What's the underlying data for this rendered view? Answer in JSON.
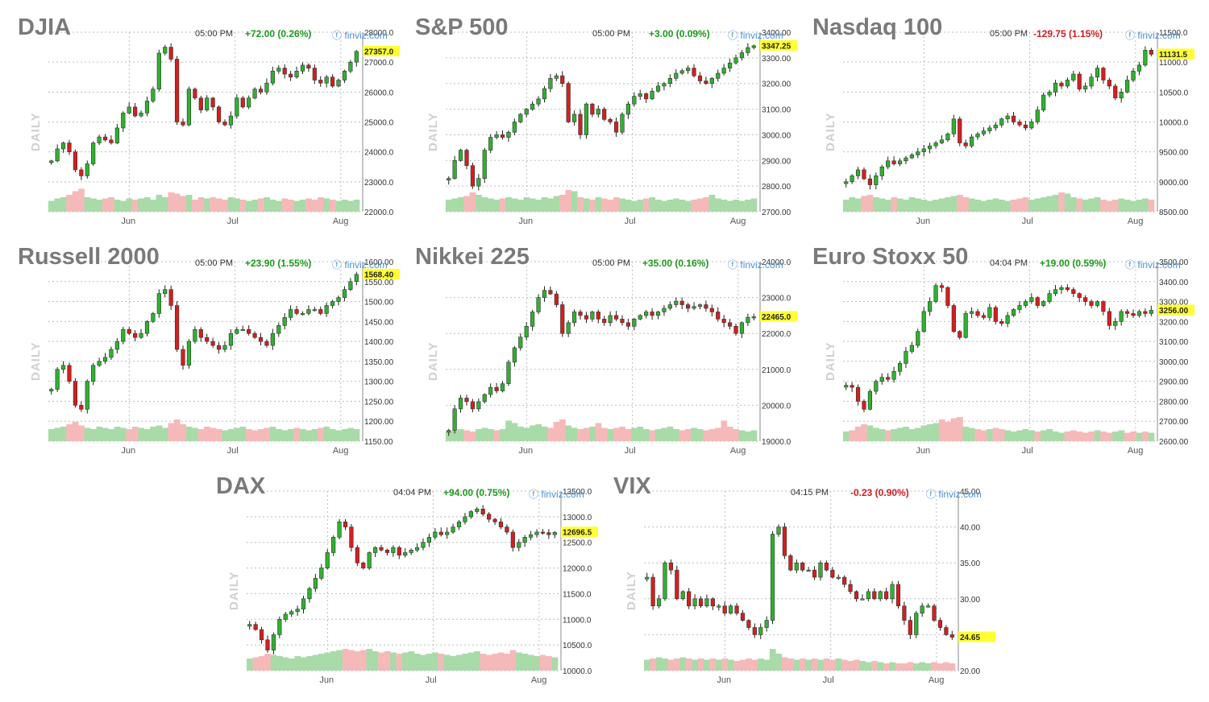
{
  "colors": {
    "up": "#2fb12f",
    "down": "#d21f1f",
    "vol_up": "#a8dba8",
    "vol_down": "#f6b9b9",
    "pos": "#1d9a1d",
    "neg": "#d21f1f",
    "current_bg": "#ffff33",
    "grid": "#bdbdbd",
    "title": "#7a7a7a",
    "daily": "#d0d0d0",
    "watermark": "#4a8fd8"
  },
  "side_label": "DAILY",
  "watermark": "finviz.com",
  "month_labels": [
    "Jun",
    "Jul",
    "Aug"
  ],
  "chart_data": [
    {
      "id": "djia",
      "type": "candlestick",
      "title": "DJIA",
      "time": "05:00 PM",
      "change": "+72.00 (0.26%)",
      "direction": "up",
      "ylim": [
        22000,
        28000
      ],
      "ticks": [
        "28000.0",
        "27000.0",
        "26000.0",
        "25000.0",
        "24000.0",
        "23000.0",
        "22000.0"
      ],
      "current": "27357.0",
      "closes": [
        23700,
        24100,
        24300,
        24000,
        23400,
        23200,
        23600,
        24300,
        24500,
        24400,
        24300,
        24800,
        25300,
        25500,
        25200,
        25300,
        25700,
        26100,
        27300,
        27500,
        27100,
        25000,
        24900,
        26100,
        25800,
        25400,
        25800,
        25500,
        25000,
        24900,
        25200,
        25800,
        25500,
        25800,
        26100,
        26000,
        26300,
        26700,
        26800,
        26600,
        26500,
        26700,
        26900,
        26800,
        26400,
        26300,
        26500,
        26200,
        26400,
        26700,
        27000,
        27357
      ],
      "volumes": [
        0.45,
        0.55,
        0.6,
        0.7,
        0.85,
        0.95,
        0.6,
        0.55,
        0.5,
        0.55,
        0.6,
        0.5,
        0.45,
        0.55,
        0.5,
        0.55,
        0.6,
        0.5,
        0.7,
        0.6,
        0.8,
        0.75,
        0.65,
        0.7,
        0.5,
        0.6,
        0.55,
        0.6,
        0.55,
        0.5,
        0.6,
        0.55,
        0.5,
        0.45,
        0.5,
        0.55,
        0.6,
        0.5,
        0.45,
        0.55,
        0.5,
        0.45,
        0.5,
        0.55,
        0.5,
        0.6,
        0.55,
        0.5,
        0.45,
        0.5,
        0.45,
        0.5
      ]
    },
    {
      "id": "sp500",
      "type": "candlestick",
      "title": "S&P 500",
      "time": "05:00 PM",
      "change": "+3.00 (0.09%)",
      "direction": "up",
      "ylim": [
        2700,
        3400
      ],
      "ticks": [
        "3400.00",
        "3300.00",
        "3200.00",
        "3100.00",
        "3000.00",
        "2900.00",
        "2800.00",
        "2700.00"
      ],
      "current": "3347.25",
      "closes": [
        2830,
        2900,
        2940,
        2880,
        2800,
        2830,
        2940,
        2990,
        3000,
        2990,
        3010,
        3050,
        3080,
        3100,
        3120,
        3140,
        3180,
        3220,
        3230,
        3200,
        3050,
        3080,
        3000,
        3120,
        3080,
        3100,
        3060,
        3050,
        3010,
        3080,
        3120,
        3150,
        3160,
        3140,
        3170,
        3190,
        3200,
        3220,
        3240,
        3250,
        3260,
        3230,
        3210,
        3200,
        3220,
        3240,
        3260,
        3280,
        3300,
        3320,
        3340,
        3347
      ],
      "volumes": [
        0.5,
        0.55,
        0.6,
        0.65,
        0.8,
        0.7,
        0.6,
        0.55,
        0.5,
        0.55,
        0.6,
        0.55,
        0.5,
        0.6,
        0.55,
        0.5,
        0.6,
        0.55,
        0.65,
        0.7,
        0.9,
        0.85,
        0.6,
        0.55,
        0.5,
        0.6,
        0.55,
        0.5,
        0.6,
        0.55,
        0.5,
        0.45,
        0.5,
        0.55,
        0.6,
        0.5,
        0.45,
        0.5,
        0.55,
        0.5,
        0.45,
        0.5,
        0.55,
        0.6,
        0.7,
        0.55,
        0.5,
        0.45,
        0.5,
        0.45,
        0.5,
        0.55
      ]
    },
    {
      "id": "ndx",
      "type": "candlestick",
      "title": "Nasdaq 100",
      "time": "05:00 PM",
      "change": "-129.75 (1.15%)",
      "direction": "down",
      "ylim": [
        8500,
        11500
      ],
      "ticks": [
        "11500.0",
        "11000.0",
        "10500.0",
        "10000.0",
        "9500.00",
        "9000.00",
        "8500.00"
      ],
      "current": "11131.5",
      "closes": [
        9000,
        9100,
        9200,
        9050,
        8950,
        9100,
        9250,
        9350,
        9300,
        9350,
        9400,
        9450,
        9500,
        9550,
        9600,
        9650,
        9700,
        9800,
        10050,
        9650,
        9600,
        9750,
        9800,
        9850,
        9900,
        9950,
        10050,
        10100,
        10000,
        9950,
        9900,
        10000,
        10200,
        10450,
        10500,
        10650,
        10600,
        10700,
        10800,
        10550,
        10600,
        10750,
        10900,
        10700,
        10600,
        10400,
        10500,
        10700,
        10850,
        10950,
        11200,
        11131
      ],
      "volumes": [
        0.5,
        0.6,
        0.55,
        0.65,
        0.7,
        0.6,
        0.55,
        0.5,
        0.6,
        0.55,
        0.5,
        0.6,
        0.55,
        0.5,
        0.45,
        0.5,
        0.55,
        0.6,
        0.65,
        0.7,
        0.6,
        0.55,
        0.5,
        0.45,
        0.5,
        0.55,
        0.5,
        0.45,
        0.5,
        0.55,
        0.6,
        0.5,
        0.55,
        0.6,
        0.65,
        0.7,
        0.8,
        0.75,
        0.6,
        0.55,
        0.5,
        0.55,
        0.6,
        0.5,
        0.45,
        0.5,
        0.55,
        0.5,
        0.45,
        0.5,
        0.55,
        0.5
      ]
    },
    {
      "id": "rut",
      "type": "candlestick",
      "title": "Russell 2000",
      "time": "05:00 PM",
      "change": "+23.90 (1.55%)",
      "direction": "up",
      "ylim": [
        1150,
        1600
      ],
      "ticks": [
        "1600.00",
        "1550.00",
        "1500.00",
        "1450.00",
        "1400.00",
        "1350.00",
        "1300.00",
        "1250.00",
        "1200.00",
        "1150.00"
      ],
      "current": "1568.40",
      "closes": [
        1280,
        1330,
        1340,
        1300,
        1240,
        1230,
        1300,
        1340,
        1350,
        1360,
        1380,
        1400,
        1430,
        1420,
        1410,
        1420,
        1450,
        1470,
        1520,
        1530,
        1490,
        1380,
        1340,
        1400,
        1430,
        1410,
        1400,
        1390,
        1380,
        1390,
        1420,
        1430,
        1430,
        1420,
        1410,
        1400,
        1390,
        1420,
        1440,
        1460,
        1480,
        1470,
        1470,
        1480,
        1480,
        1470,
        1490,
        1500,
        1510,
        1530,
        1550,
        1568
      ],
      "volumes": [
        0.5,
        0.55,
        0.6,
        0.7,
        0.8,
        0.65,
        0.55,
        0.5,
        0.6,
        0.55,
        0.5,
        0.6,
        0.55,
        0.5,
        0.6,
        0.55,
        0.5,
        0.6,
        0.65,
        0.55,
        0.75,
        0.9,
        0.7,
        0.6,
        0.55,
        0.5,
        0.6,
        0.55,
        0.5,
        0.45,
        0.5,
        0.55,
        0.6,
        0.5,
        0.45,
        0.5,
        0.55,
        0.6,
        0.5,
        0.45,
        0.5,
        0.55,
        0.5,
        0.45,
        0.5,
        0.55,
        0.6,
        0.5,
        0.45,
        0.5,
        0.55,
        0.5
      ]
    },
    {
      "id": "nikkei",
      "type": "candlestick",
      "title": "Nikkei 225",
      "time": "05:00 PM",
      "change": "+35.00 (0.16%)",
      "direction": "up",
      "ylim": [
        19000,
        24000
      ],
      "ticks": [
        "24000.0",
        "23000.0",
        "22000.0",
        "21000.0",
        "20000.0",
        "19000.0"
      ],
      "current": "22465.0",
      "closes": [
        19300,
        19900,
        20200,
        20100,
        19900,
        20100,
        20300,
        20500,
        20400,
        20600,
        21200,
        21600,
        21900,
        22200,
        22600,
        23000,
        23200,
        23100,
        22800,
        22000,
        22300,
        22600,
        22500,
        22400,
        22600,
        22400,
        22300,
        22500,
        22400,
        22300,
        22200,
        22400,
        22500,
        22600,
        22500,
        22600,
        22700,
        22800,
        22900,
        22800,
        22700,
        22750,
        22800,
        22700,
        22600,
        22400,
        22300,
        22200,
        22000,
        22300,
        22450,
        22465
      ],
      "volumes": [
        0.4,
        0.45,
        0.5,
        0.45,
        0.4,
        0.5,
        0.55,
        0.5,
        0.45,
        0.5,
        0.85,
        0.75,
        0.6,
        0.55,
        0.65,
        0.7,
        0.6,
        0.55,
        0.8,
        0.9,
        0.65,
        0.55,
        0.5,
        0.55,
        0.6,
        0.75,
        0.55,
        0.5,
        0.55,
        0.6,
        0.5,
        0.55,
        0.6,
        0.5,
        0.45,
        0.5,
        0.55,
        0.6,
        0.5,
        0.45,
        0.5,
        0.55,
        0.5,
        0.45,
        0.5,
        0.55,
        0.85,
        0.6,
        0.5,
        0.45,
        0.4,
        0.45
      ]
    },
    {
      "id": "sx5e",
      "type": "candlestick",
      "title": "Euro Stoxx 50",
      "time": "04:04 PM",
      "change": "+19.00 (0.59%)",
      "direction": "up",
      "ylim": [
        2600,
        3500
      ],
      "ticks": [
        "3500.00",
        "3400.00",
        "3300.00",
        "3200.00",
        "3100.00",
        "3000.00",
        "2900.00",
        "2800.00",
        "2700.00",
        "2600.00"
      ],
      "current": "3256.00",
      "closes": [
        2880,
        2870,
        2800,
        2760,
        2850,
        2900,
        2920,
        2910,
        2950,
        2990,
        3050,
        3080,
        3150,
        3250,
        3300,
        3380,
        3370,
        3280,
        3150,
        3120,
        3240,
        3250,
        3230,
        3220,
        3270,
        3200,
        3190,
        3230,
        3260,
        3280,
        3300,
        3320,
        3280,
        3300,
        3340,
        3360,
        3370,
        3360,
        3340,
        3320,
        3300,
        3280,
        3300,
        3250,
        3180,
        3200,
        3250,
        3240,
        3230,
        3250,
        3240,
        3256
      ],
      "volumes": [
        0.4,
        0.45,
        0.6,
        0.7,
        0.65,
        0.55,
        0.5,
        0.45,
        0.5,
        0.55,
        0.6,
        0.5,
        0.55,
        0.65,
        0.7,
        0.75,
        0.9,
        0.8,
        0.95,
        1.0,
        0.6,
        0.55,
        0.5,
        0.45,
        0.5,
        0.55,
        0.5,
        0.45,
        0.4,
        0.45,
        0.5,
        0.45,
        0.4,
        0.45,
        0.5,
        0.4,
        0.35,
        0.4,
        0.45,
        0.4,
        0.35,
        0.4,
        0.45,
        0.4,
        0.35,
        0.4,
        0.45,
        0.35,
        0.4,
        0.35,
        0.4,
        0.35
      ]
    },
    {
      "id": "dax",
      "type": "candlestick",
      "title": "DAX",
      "time": "04:04 PM",
      "change": "+94.00 (0.75%)",
      "direction": "up",
      "ylim": [
        10000,
        13500
      ],
      "ticks": [
        "13500.0",
        "13000.0",
        "12500.0",
        "12000.0",
        "11500.0",
        "11000.0",
        "10500.0",
        "10000.0"
      ],
      "current": "12696.5",
      "closes": [
        10900,
        10800,
        10600,
        10400,
        10700,
        11000,
        11100,
        11150,
        11200,
        11400,
        11600,
        11800,
        12000,
        12300,
        12600,
        12900,
        12800,
        12400,
        12100,
        12000,
        12300,
        12400,
        12350,
        12300,
        12400,
        12250,
        12300,
        12350,
        12400,
        12500,
        12600,
        12700,
        12650,
        12700,
        12800,
        12900,
        13000,
        13100,
        13150,
        13050,
        12950,
        12900,
        12800,
        12700,
        12400,
        12500,
        12600,
        12650,
        12700,
        12690,
        12650,
        12696
      ],
      "volumes": [
        0.5,
        0.55,
        0.6,
        0.7,
        0.65,
        0.6,
        0.55,
        0.5,
        0.6,
        0.55,
        0.6,
        0.65,
        0.7,
        0.75,
        0.8,
        0.85,
        0.9,
        0.85,
        0.8,
        0.85,
        0.9,
        0.8,
        0.75,
        0.8,
        0.75,
        0.7,
        0.75,
        0.8,
        0.7,
        0.65,
        0.7,
        0.75,
        0.7,
        0.65,
        0.6,
        0.65,
        0.7,
        0.75,
        0.8,
        0.7,
        0.65,
        0.7,
        0.75,
        0.7,
        0.85,
        0.75,
        0.7,
        0.65,
        0.6,
        0.65,
        0.6,
        0.55
      ]
    },
    {
      "id": "vix",
      "type": "candlestick",
      "title": "VIX",
      "time": "04:15 PM",
      "change": "-0.23 (0.90%)",
      "direction": "down",
      "ylim": [
        20,
        45
      ],
      "ticks": [
        "45.00",
        "40.00",
        "35.00",
        "30.00",
        "25.00",
        "20.00"
      ],
      "current": "24.65",
      "closes": [
        33,
        29,
        30,
        35,
        34,
        30,
        31,
        29,
        30,
        29,
        30,
        29,
        29,
        28,
        29,
        28,
        27,
        26,
        25,
        26,
        27,
        39,
        40,
        36,
        34,
        35,
        34,
        34,
        33,
        35,
        34,
        33,
        33,
        32,
        31,
        30,
        30,
        31,
        30,
        31,
        30,
        32,
        29,
        27,
        25,
        28,
        29,
        29,
        27,
        26,
        25,
        24.65
      ],
      "volumes": [
        0.45,
        0.5,
        0.55,
        0.5,
        0.45,
        0.5,
        0.55,
        0.5,
        0.45,
        0.5,
        0.45,
        0.5,
        0.45,
        0.5,
        0.45,
        0.4,
        0.45,
        0.5,
        0.45,
        0.5,
        0.45,
        0.9,
        0.7,
        0.55,
        0.5,
        0.45,
        0.5,
        0.45,
        0.5,
        0.45,
        0.5,
        0.45,
        0.5,
        0.45,
        0.4,
        0.45,
        0.4,
        0.35,
        0.4,
        0.35,
        0.3,
        0.35,
        0.3,
        0.3,
        0.35,
        0.3,
        0.35,
        0.3,
        0.35,
        0.3,
        0.35,
        0.3
      ]
    }
  ]
}
